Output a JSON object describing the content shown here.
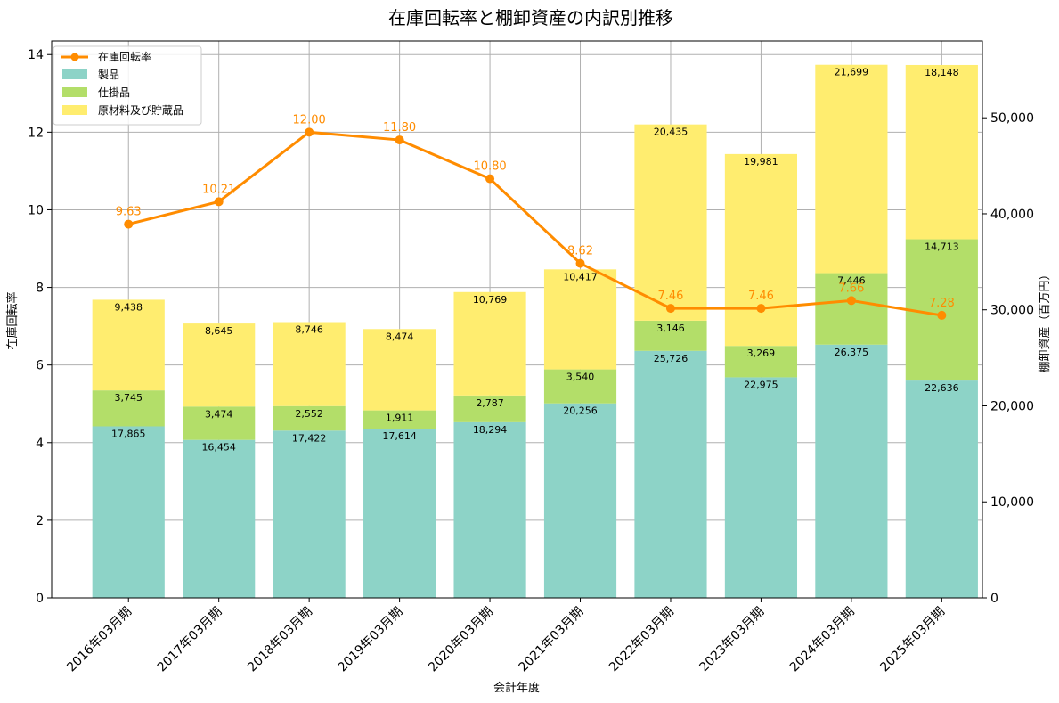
{
  "chart_data": {
    "type": "bar+line",
    "title": "在庫回転率と棚卸資産の内訳別推移",
    "xlabel": "会計年度",
    "ylabel_left": "在庫回転率",
    "ylabel_right": "棚卸資産（百万円）",
    "categories": [
      "2016年03月期",
      "2017年03月期",
      "2018年03月期",
      "2019年03月期",
      "2020年03月期",
      "2021年03月期",
      "2022年03月期",
      "2023年03月期",
      "2024年03月期",
      "2025年03月期"
    ],
    "ylim_left": [
      0,
      14.35
    ],
    "ylim_right": [
      0,
      58000
    ],
    "yticks_left": [
      0,
      2,
      4,
      6,
      8,
      10,
      12,
      14
    ],
    "yticks_left_labels": [
      "0",
      "2",
      "4",
      "6",
      "8",
      "10",
      "12",
      "14"
    ],
    "yticks_right": [
      0,
      10000,
      20000,
      30000,
      40000,
      50000
    ],
    "yticks_right_labels": [
      "0",
      "10,000",
      "20,000",
      "30,000",
      "40,000",
      "50,000"
    ],
    "grid": true,
    "legend_position": "top-left",
    "line_series": {
      "name": "在庫回転率",
      "color": "#ff8c00",
      "values": [
        9.63,
        10.21,
        12.0,
        11.8,
        10.8,
        8.62,
        7.46,
        7.46,
        7.66,
        7.28
      ],
      "labels": [
        "9.63",
        "10.21",
        "12.00",
        "11.80",
        "10.80",
        "8.62",
        "7.46",
        "7.46",
        "7.66",
        "7.28"
      ]
    },
    "bar_series": [
      {
        "name": "製品",
        "color": "#8dd3c7",
        "values": [
          17865,
          16454,
          17422,
          17614,
          18294,
          20256,
          25726,
          22975,
          26375,
          22636
        ],
        "labels": [
          "17,865",
          "16,454",
          "17,422",
          "17,614",
          "18,294",
          "20,256",
          "25,726",
          "22,975",
          "26,375",
          "22,636"
        ]
      },
      {
        "name": "仕掛品",
        "color": "#b3de69",
        "values": [
          3745,
          3474,
          2552,
          1911,
          2787,
          3540,
          3146,
          3269,
          7446,
          14713
        ],
        "labels": [
          "3,745",
          "3,474",
          "2,552",
          "1,911",
          "2,787",
          "3,540",
          "3,146",
          "3,269",
          "7,446",
          "14,713"
        ]
      },
      {
        "name": "原材料及び貯蔵品",
        "color": "#ffed6f",
        "values": [
          9438,
          8645,
          8746,
          8474,
          10769,
          10417,
          20435,
          19981,
          21699,
          18148
        ],
        "labels": [
          "9,438",
          "8,645",
          "8,746",
          "8,474",
          "10,769",
          "10,417",
          "20,435",
          "19,981",
          "21,699",
          "18,148"
        ]
      }
    ]
  }
}
